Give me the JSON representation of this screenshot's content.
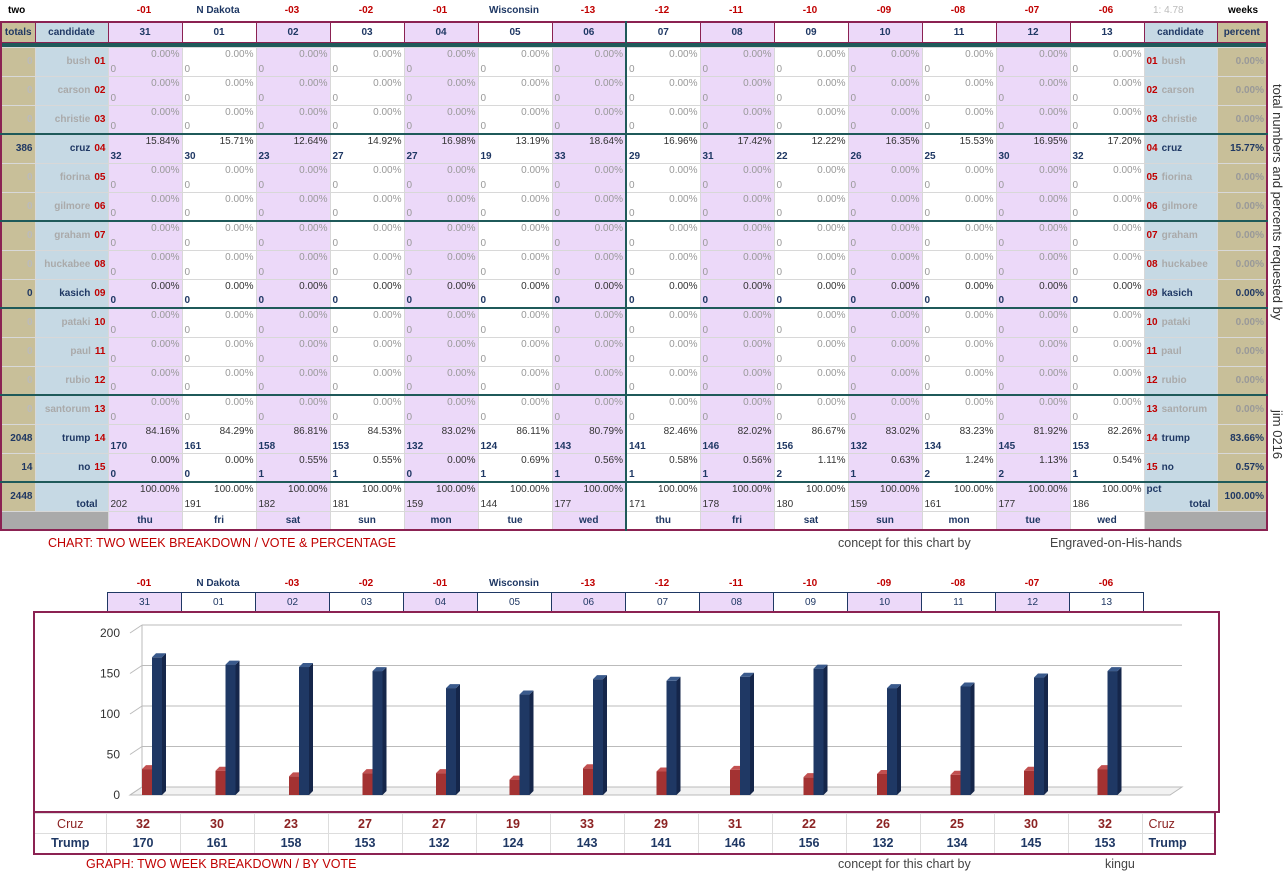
{
  "top": {
    "left_label": "two",
    "right_label": "weeks",
    "ratio": "1: 4.78",
    "marks": [
      "-01",
      "N Dakota",
      "-03",
      "-02",
      "-01",
      "Wisconsin",
      "-13",
      "-12",
      "-11",
      "-10",
      "-09",
      "-08",
      "-07",
      "-06"
    ]
  },
  "header": {
    "totals": "totals",
    "candidate": "candidate",
    "percent": "percent",
    "days": [
      "31",
      "01",
      "02",
      "03",
      "04",
      "05",
      "06",
      "07",
      "08",
      "09",
      "10",
      "11",
      "12",
      "13"
    ]
  },
  "candidates": [
    {
      "name": "bush",
      "num": "01",
      "total": "0",
      "percent": "0.00%",
      "active": false,
      "votes": [
        "0",
        "0",
        "0",
        "0",
        "0",
        "0",
        "0",
        "0",
        "0",
        "0",
        "0",
        "0",
        "0",
        "0"
      ],
      "pcts": [
        "0.00%",
        "0.00%",
        "0.00%",
        "0.00%",
        "0.00%",
        "0.00%",
        "0.00%",
        "0.00%",
        "0.00%",
        "0.00%",
        "0.00%",
        "0.00%",
        "0.00%",
        "0.00%"
      ]
    },
    {
      "name": "carson",
      "num": "02",
      "total": "0",
      "percent": "0.00%",
      "active": false,
      "votes": [
        "0",
        "0",
        "0",
        "0",
        "0",
        "0",
        "0",
        "0",
        "0",
        "0",
        "0",
        "0",
        "0",
        "0"
      ],
      "pcts": [
        "0.00%",
        "0.00%",
        "0.00%",
        "0.00%",
        "0.00%",
        "0.00%",
        "0.00%",
        "0.00%",
        "0.00%",
        "0.00%",
        "0.00%",
        "0.00%",
        "0.00%",
        "0.00%"
      ]
    },
    {
      "name": "christie",
      "num": "03",
      "total": "0",
      "percent": "0.00%",
      "active": false,
      "votes": [
        "0",
        "0",
        "0",
        "0",
        "0",
        "0",
        "0",
        "0",
        "0",
        "0",
        "0",
        "0",
        "0",
        "0"
      ],
      "pcts": [
        "0.00%",
        "0.00%",
        "0.00%",
        "0.00%",
        "0.00%",
        "0.00%",
        "0.00%",
        "0.00%",
        "0.00%",
        "0.00%",
        "0.00%",
        "0.00%",
        "0.00%",
        "0.00%"
      ]
    },
    {
      "name": "cruz",
      "num": "04",
      "total": "386",
      "percent": "15.77%",
      "active": true,
      "votes": [
        "32",
        "30",
        "23",
        "27",
        "27",
        "19",
        "33",
        "29",
        "31",
        "22",
        "26",
        "25",
        "30",
        "32"
      ],
      "pcts": [
        "15.84%",
        "15.71%",
        "12.64%",
        "14.92%",
        "16.98%",
        "13.19%",
        "18.64%",
        "16.96%",
        "17.42%",
        "12.22%",
        "16.35%",
        "15.53%",
        "16.95%",
        "17.20%"
      ]
    },
    {
      "name": "fiorina",
      "num": "05",
      "total": "0",
      "percent": "0.00%",
      "active": false,
      "votes": [
        "0",
        "0",
        "0",
        "0",
        "0",
        "0",
        "0",
        "0",
        "0",
        "0",
        "0",
        "0",
        "0",
        "0"
      ],
      "pcts": [
        "0.00%",
        "0.00%",
        "0.00%",
        "0.00%",
        "0.00%",
        "0.00%",
        "0.00%",
        "0.00%",
        "0.00%",
        "0.00%",
        "0.00%",
        "0.00%",
        "0.00%",
        "0.00%"
      ]
    },
    {
      "name": "gilmore",
      "num": "06",
      "total": "0",
      "percent": "0.00%",
      "active": false,
      "votes": [
        "0",
        "0",
        "0",
        "0",
        "0",
        "0",
        "0",
        "0",
        "0",
        "0",
        "0",
        "0",
        "0",
        "0"
      ],
      "pcts": [
        "0.00%",
        "0.00%",
        "0.00%",
        "0.00%",
        "0.00%",
        "0.00%",
        "0.00%",
        "0.00%",
        "0.00%",
        "0.00%",
        "0.00%",
        "0.00%",
        "0.00%",
        "0.00%"
      ]
    },
    {
      "name": "graham",
      "num": "07",
      "total": "0",
      "percent": "0.00%",
      "active": false,
      "votes": [
        "0",
        "0",
        "0",
        "0",
        "0",
        "0",
        "0",
        "0",
        "0",
        "0",
        "0",
        "0",
        "0",
        "0"
      ],
      "pcts": [
        "0.00%",
        "0.00%",
        "0.00%",
        "0.00%",
        "0.00%",
        "0.00%",
        "0.00%",
        "0.00%",
        "0.00%",
        "0.00%",
        "0.00%",
        "0.00%",
        "0.00%",
        "0.00%"
      ]
    },
    {
      "name": "huckabee",
      "num": "08",
      "total": "0",
      "percent": "0.00%",
      "active": false,
      "votes": [
        "0",
        "0",
        "0",
        "0",
        "0",
        "0",
        "0",
        "0",
        "0",
        "0",
        "0",
        "0",
        "0",
        "0"
      ],
      "pcts": [
        "0.00%",
        "0.00%",
        "0.00%",
        "0.00%",
        "0.00%",
        "0.00%",
        "0.00%",
        "0.00%",
        "0.00%",
        "0.00%",
        "0.00%",
        "0.00%",
        "0.00%",
        "0.00%"
      ]
    },
    {
      "name": "kasich",
      "num": "09",
      "total": "0",
      "percent": "0.00%",
      "active": true,
      "votes": [
        "0",
        "0",
        "0",
        "0",
        "0",
        "0",
        "0",
        "0",
        "0",
        "0",
        "0",
        "0",
        "0",
        "0"
      ],
      "pcts": [
        "0.00%",
        "0.00%",
        "0.00%",
        "0.00%",
        "0.00%",
        "0.00%",
        "0.00%",
        "0.00%",
        "0.00%",
        "0.00%",
        "0.00%",
        "0.00%",
        "0.00%",
        "0.00%"
      ]
    },
    {
      "name": "pataki",
      "num": "10",
      "total": "0",
      "percent": "0.00%",
      "active": false,
      "votes": [
        "0",
        "0",
        "0",
        "0",
        "0",
        "0",
        "0",
        "0",
        "0",
        "0",
        "0",
        "0",
        "0",
        "0"
      ],
      "pcts": [
        "0.00%",
        "0.00%",
        "0.00%",
        "0.00%",
        "0.00%",
        "0.00%",
        "0.00%",
        "0.00%",
        "0.00%",
        "0.00%",
        "0.00%",
        "0.00%",
        "0.00%",
        "0.00%"
      ]
    },
    {
      "name": "paul",
      "num": "11",
      "total": "0",
      "percent": "0.00%",
      "active": false,
      "votes": [
        "0",
        "0",
        "0",
        "0",
        "0",
        "0",
        "0",
        "0",
        "0",
        "0",
        "0",
        "0",
        "0",
        "0"
      ],
      "pcts": [
        "0.00%",
        "0.00%",
        "0.00%",
        "0.00%",
        "0.00%",
        "0.00%",
        "0.00%",
        "0.00%",
        "0.00%",
        "0.00%",
        "0.00%",
        "0.00%",
        "0.00%",
        "0.00%"
      ]
    },
    {
      "name": "rubio",
      "num": "12",
      "total": "0",
      "percent": "0.00%",
      "active": false,
      "votes": [
        "0",
        "0",
        "0",
        "0",
        "0",
        "0",
        "0",
        "0",
        "0",
        "0",
        "0",
        "0",
        "0",
        "0"
      ],
      "pcts": [
        "0.00%",
        "0.00%",
        "0.00%",
        "0.00%",
        "0.00%",
        "0.00%",
        "0.00%",
        "0.00%",
        "0.00%",
        "0.00%",
        "0.00%",
        "0.00%",
        "0.00%",
        "0.00%"
      ]
    },
    {
      "name": "santorum",
      "num": "13",
      "total": "0",
      "percent": "0.00%",
      "active": false,
      "votes": [
        "0",
        "0",
        "0",
        "0",
        "0",
        "0",
        "0",
        "0",
        "0",
        "0",
        "0",
        "0",
        "0",
        "0"
      ],
      "pcts": [
        "0.00%",
        "0.00%",
        "0.00%",
        "0.00%",
        "0.00%",
        "0.00%",
        "0.00%",
        "0.00%",
        "0.00%",
        "0.00%",
        "0.00%",
        "0.00%",
        "0.00%",
        "0.00%"
      ]
    },
    {
      "name": "trump",
      "num": "14",
      "total": "2048",
      "percent": "83.66%",
      "active": true,
      "votes": [
        "170",
        "161",
        "158",
        "153",
        "132",
        "124",
        "143",
        "141",
        "146",
        "156",
        "132",
        "134",
        "145",
        "153"
      ],
      "pcts": [
        "84.16%",
        "84.29%",
        "86.81%",
        "84.53%",
        "83.02%",
        "86.11%",
        "80.79%",
        "82.46%",
        "82.02%",
        "86.67%",
        "83.02%",
        "83.23%",
        "81.92%",
        "82.26%"
      ]
    },
    {
      "name": "no",
      "num": "15",
      "total": "14",
      "percent": "0.57%",
      "active": true,
      "votes": [
        "0",
        "0",
        "1",
        "1",
        "0",
        "1",
        "1",
        "1",
        "1",
        "2",
        "1",
        "2",
        "2",
        "1"
      ],
      "pcts": [
        "0.00%",
        "0.00%",
        "0.55%",
        "0.55%",
        "0.00%",
        "0.69%",
        "0.56%",
        "0.58%",
        "0.56%",
        "1.11%",
        "0.63%",
        "1.24%",
        "1.13%",
        "0.54%"
      ]
    }
  ],
  "totals_row": {
    "grand_total": "2448",
    "label_top": "pct",
    "label": "total",
    "percent": "100.00%",
    "votes": [
      "202",
      "191",
      "182",
      "181",
      "159",
      "144",
      "177",
      "171",
      "178",
      "180",
      "159",
      "161",
      "177",
      "186"
    ],
    "pcts": [
      "100.00%",
      "100.00%",
      "100.00%",
      "100.00%",
      "100.00%",
      "100.00%",
      "100.00%",
      "100.00%",
      "100.00%",
      "100.00%",
      "100.00%",
      "100.00%",
      "100.00%",
      "100.00%"
    ]
  },
  "weekdays": [
    "thu",
    "fri",
    "sat",
    "sun",
    "mon",
    "tue",
    "wed",
    "thu",
    "fri",
    "sat",
    "sun",
    "mon",
    "tue",
    "wed"
  ],
  "side_text": "total numbers and percents requested by",
  "side_text2": "jim 0216",
  "captions": {
    "chart1": "CHART: TWO WEEK BREAKDOWN / VOTE & PERCENTAGE",
    "concept1": "concept for this chart by",
    "author1": "Engraved-on-His-hands",
    "chart2": "GRAPH: TWO WEEK BREAKDOWN / BY VOTE",
    "concept2": "concept for this chart by",
    "author2": "kingu"
  },
  "colors": {
    "cruz": "#a33232",
    "trump": "#1f3864",
    "accent": "#8b2252",
    "teal": "#1f5a5a"
  },
  "chart_data": {
    "type": "bar",
    "categories": [
      "31",
      "01",
      "02",
      "03",
      "04",
      "05",
      "06",
      "07",
      "08",
      "09",
      "10",
      "11",
      "12",
      "13"
    ],
    "series": [
      {
        "name": "Cruz",
        "values": [
          32,
          30,
          23,
          27,
          27,
          19,
          33,
          29,
          31,
          22,
          26,
          25,
          30,
          32
        ]
      },
      {
        "name": "Trump",
        "values": [
          170,
          161,
          158,
          153,
          132,
          124,
          143,
          141,
          146,
          156,
          132,
          134,
          145,
          153
        ]
      }
    ],
    "yticks": [
      0,
      50,
      100,
      150,
      200
    ],
    "ylim": [
      0,
      200
    ],
    "grid": true,
    "legend": "table below"
  }
}
